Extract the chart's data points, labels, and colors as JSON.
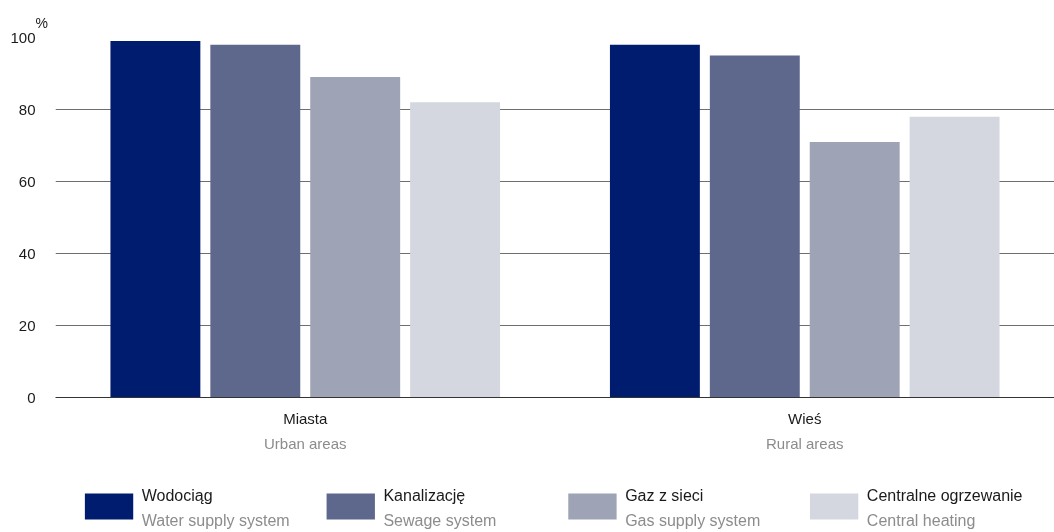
{
  "chart_data": {
    "type": "bar",
    "ylabel": "%",
    "categories": [
      "Miasta\nUrban areas",
      "Wieś\nRural areas"
    ],
    "series": [
      {
        "name": "Wodociąg\nWater supply system",
        "color": "#001c6e",
        "values": [
          99,
          98
        ]
      },
      {
        "name": "Kanalizację\nSewage system",
        "color": "#5e678c",
        "values": [
          98,
          95
        ]
      },
      {
        "name": "Gaz z sieci\nGas supply system",
        "color": "#9ea3b5",
        "values": [
          89,
          71
        ]
      },
      {
        "name": "Centralne ogrzewanie\nCentral heating",
        "color": "#d4d7df",
        "values": [
          82,
          78
        ]
      }
    ],
    "ylim": [
      0,
      100
    ],
    "yticks": [
      0,
      20,
      40,
      60,
      80,
      100
    ],
    "grid": "y",
    "legend": "bottom"
  }
}
